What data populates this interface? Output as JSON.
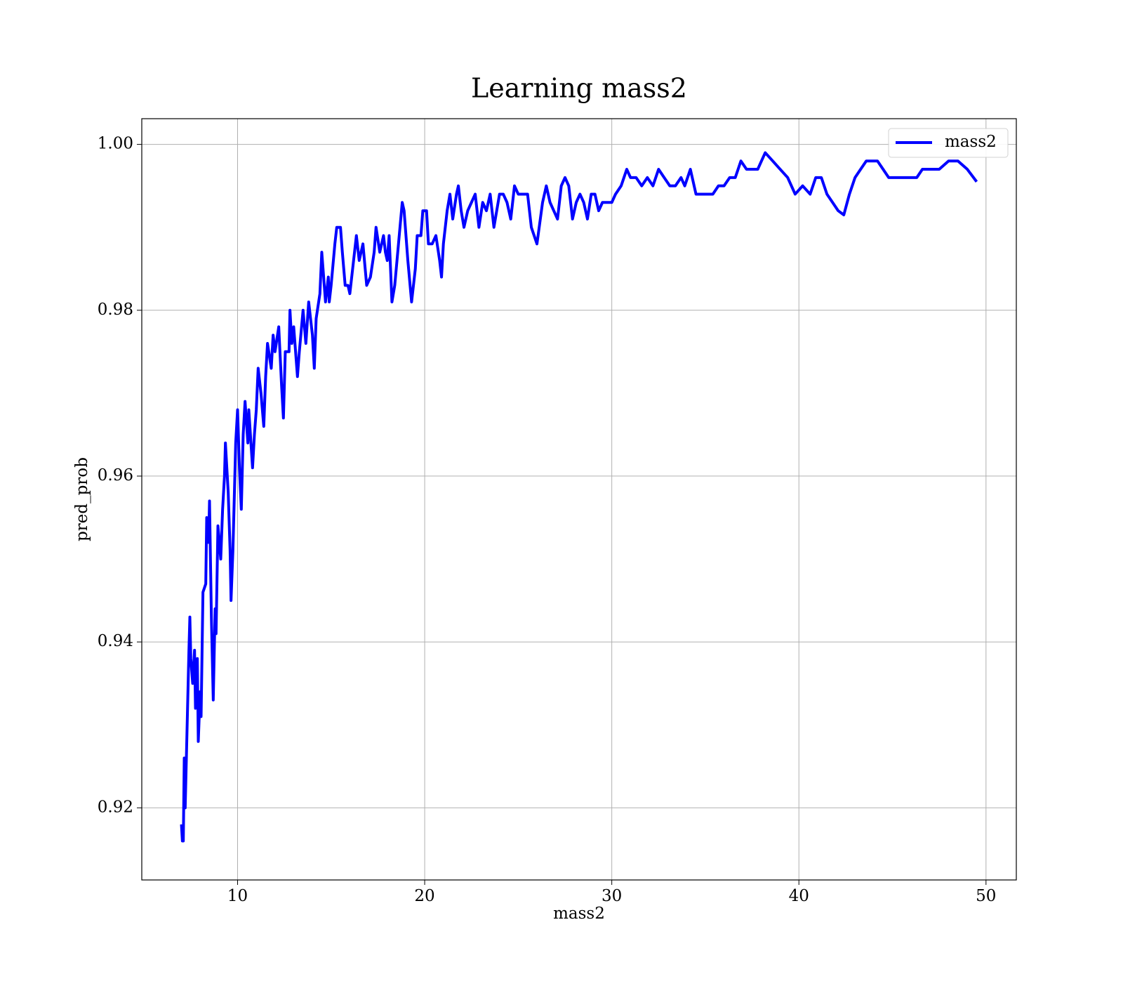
{
  "chart_data": {
    "type": "line",
    "title": "Learning mass2",
    "xlabel": "mass2",
    "ylabel": "pred_prob",
    "x": [
      7.0,
      7.05,
      7.1,
      7.15,
      7.2,
      7.4,
      7.45,
      7.5,
      7.6,
      7.7,
      7.75,
      7.85,
      7.9,
      8.0,
      8.05,
      8.15,
      8.3,
      8.35,
      8.45,
      8.5,
      8.6,
      8.7,
      8.8,
      8.85,
      8.95,
      9.1,
      9.2,
      9.3,
      9.35,
      9.5,
      9.6,
      9.65,
      9.75,
      9.9,
      10.0,
      10.1,
      10.2,
      10.3,
      10.4,
      10.55,
      10.6,
      10.8,
      10.9,
      11.0,
      11.1,
      11.25,
      11.4,
      11.5,
      11.6,
      11.8,
      11.9,
      12.0,
      12.2,
      12.35,
      12.45,
      12.55,
      12.75,
      12.8,
      12.9,
      13.0,
      13.2,
      13.3,
      13.5,
      13.65,
      13.8,
      13.9,
      14.0,
      14.1,
      14.2,
      14.4,
      14.5,
      14.7,
      14.85,
      14.9,
      15.0,
      15.2,
      15.3,
      15.5,
      15.6,
      15.75,
      15.9,
      16.0,
      16.2,
      16.35,
      16.5,
      16.7,
      16.9,
      17.1,
      17.3,
      17.4,
      17.6,
      17.8,
      17.9,
      18.0,
      18.1,
      18.25,
      18.4,
      18.6,
      18.8,
      18.9,
      19.1,
      19.3,
      19.5,
      19.6,
      19.8,
      19.9,
      20.1,
      20.2,
      20.4,
      20.6,
      20.8,
      20.9,
      21.0,
      21.2,
      21.35,
      21.5,
      21.7,
      21.8,
      21.95,
      22.1,
      22.3,
      22.5,
      22.7,
      22.9,
      23.1,
      23.3,
      23.5,
      23.7,
      24.0,
      24.2,
      24.4,
      24.6,
      24.8,
      25.0,
      25.2,
      25.5,
      25.7,
      26.0,
      26.3,
      26.5,
      26.7,
      26.9,
      27.1,
      27.3,
      27.5,
      27.7,
      27.9,
      28.1,
      28.3,
      28.5,
      28.7,
      28.9,
      29.1,
      29.3,
      29.5,
      29.7,
      30.0,
      30.2,
      30.5,
      30.8,
      31.0,
      31.3,
      31.6,
      31.9,
      32.2,
      32.5,
      32.8,
      33.1,
      33.4,
      33.7,
      33.9,
      34.2,
      34.5,
      34.8,
      35.1,
      35.4,
      35.7,
      36.0,
      36.3,
      36.6,
      36.9,
      37.2,
      37.5,
      37.8,
      38.2,
      38.6,
      39.0,
      39.4,
      39.8,
      40.2,
      40.6,
      40.9,
      41.2,
      41.5,
      41.8,
      42.1,
      42.4,
      42.7,
      43.0,
      43.3,
      43.6,
      43.9,
      44.2,
      44.5,
      44.8,
      45.2,
      45.6,
      46.0,
      46.3,
      46.6,
      47.0,
      47.5,
      48.0,
      48.5,
      49.0,
      49.5
    ],
    "series": [
      {
        "name": "mass2",
        "color": "#0000ff",
        "values": [
          0.918,
          0.916,
          0.916,
          0.926,
          0.92,
          0.939,
          0.943,
          0.938,
          0.935,
          0.939,
          0.932,
          0.938,
          0.928,
          0.934,
          0.931,
          0.946,
          0.947,
          0.955,
          0.952,
          0.957,
          0.943,
          0.933,
          0.944,
          0.941,
          0.954,
          0.95,
          0.956,
          0.96,
          0.964,
          0.958,
          0.951,
          0.945,
          0.951,
          0.964,
          0.968,
          0.961,
          0.956,
          0.965,
          0.969,
          0.964,
          0.968,
          0.961,
          0.965,
          0.968,
          0.973,
          0.97,
          0.966,
          0.972,
          0.976,
          0.973,
          0.977,
          0.975,
          0.978,
          0.971,
          0.967,
          0.975,
          0.975,
          0.98,
          0.976,
          0.978,
          0.972,
          0.975,
          0.98,
          0.976,
          0.981,
          0.979,
          0.977,
          0.973,
          0.979,
          0.982,
          0.987,
          0.981,
          0.984,
          0.981,
          0.983,
          0.988,
          0.99,
          0.99,
          0.987,
          0.983,
          0.983,
          0.982,
          0.986,
          0.989,
          0.986,
          0.988,
          0.983,
          0.984,
          0.987,
          0.99,
          0.987,
          0.989,
          0.987,
          0.986,
          0.989,
          0.981,
          0.983,
          0.988,
          0.993,
          0.992,
          0.986,
          0.981,
          0.985,
          0.989,
          0.989,
          0.992,
          0.992,
          0.988,
          0.988,
          0.989,
          0.986,
          0.984,
          0.988,
          0.992,
          0.994,
          0.991,
          0.994,
          0.995,
          0.992,
          0.99,
          0.992,
          0.993,
          0.994,
          0.99,
          0.993,
          0.992,
          0.994,
          0.99,
          0.994,
          0.994,
          0.993,
          0.991,
          0.995,
          0.994,
          0.994,
          0.994,
          0.99,
          0.988,
          0.993,
          0.995,
          0.993,
          0.992,
          0.991,
          0.995,
          0.996,
          0.995,
          0.991,
          0.993,
          0.994,
          0.993,
          0.991,
          0.994,
          0.994,
          0.992,
          0.993,
          0.993,
          0.993,
          0.994,
          0.995,
          0.997,
          0.996,
          0.996,
          0.995,
          0.996,
          0.995,
          0.997,
          0.996,
          0.995,
          0.995,
          0.996,
          0.995,
          0.997,
          0.994,
          0.994,
          0.994,
          0.994,
          0.995,
          0.995,
          0.996,
          0.996,
          0.998,
          0.997,
          0.997,
          0.997,
          0.999,
          0.998,
          0.997,
          0.996,
          0.994,
          0.995,
          0.994,
          0.996,
          0.996,
          0.994,
          0.993,
          0.992,
          0.9915,
          0.994,
          0.996,
          0.997,
          0.998,
          0.998,
          0.998,
          0.997,
          0.996,
          0.996,
          0.996,
          0.996,
          0.996,
          0.997,
          0.997,
          0.997,
          0.998,
          0.998,
          0.997,
          0.9955
        ]
      }
    ],
    "xlim": [
      4.88,
      51.62
    ],
    "ylim": [
      0.9113,
      1.0031
    ],
    "xticks": [
      10,
      20,
      30,
      40,
      50
    ],
    "yticks": [
      0.92,
      0.94,
      0.96,
      0.98,
      {
        "value": 1,
        "label": "1.00"
      }
    ],
    "grid": true,
    "legend": "upper right"
  }
}
